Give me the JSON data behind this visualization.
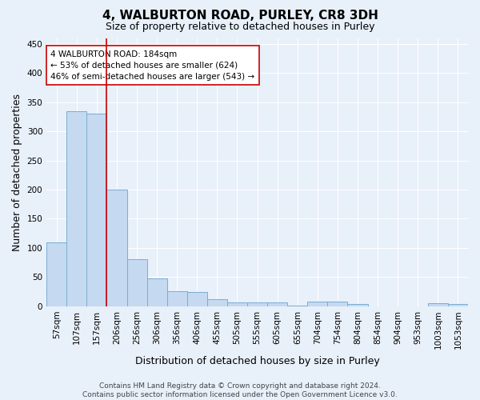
{
  "title": "4, WALBURTON ROAD, PURLEY, CR8 3DH",
  "subtitle": "Size of property relative to detached houses in Purley",
  "xlabel": "Distribution of detached houses by size in Purley",
  "ylabel": "Number of detached properties",
  "bar_labels": [
    "57sqm",
    "107sqm",
    "157sqm",
    "206sqm",
    "256sqm",
    "306sqm",
    "356sqm",
    "406sqm",
    "455sqm",
    "505sqm",
    "555sqm",
    "605sqm",
    "655sqm",
    "704sqm",
    "754sqm",
    "804sqm",
    "854sqm",
    "904sqm",
    "953sqm",
    "1003sqm",
    "1053sqm"
  ],
  "bar_values": [
    109,
    335,
    330,
    200,
    80,
    47,
    25,
    24,
    12,
    7,
    7,
    7,
    1,
    8,
    8,
    4,
    0,
    0,
    0,
    5,
    4
  ],
  "bar_color": "#c5d9f0",
  "bar_edge_color": "#7aadd4",
  "background_color": "#e8f0fa",
  "grid_color": "#ffffff",
  "vline_x": 2.5,
  "vline_color": "#cc0000",
  "annotation_text": "4 WALBURTON ROAD: 184sqm\n← 53% of detached houses are smaller (624)\n46% of semi-detached houses are larger (543) →",
  "annotation_box_color": "#ffffff",
  "annotation_box_edge_color": "#cc0000",
  "footer_line1": "Contains HM Land Registry data © Crown copyright and database right 2024.",
  "footer_line2": "Contains public sector information licensed under the Open Government Licence v3.0.",
  "ylim": [
    0,
    460
  ],
  "yticks": [
    0,
    50,
    100,
    150,
    200,
    250,
    300,
    350,
    400,
    450
  ],
  "title_fontsize": 11,
  "subtitle_fontsize": 9,
  "axis_label_fontsize": 9,
  "tick_fontsize": 7.5,
  "annotation_fontsize": 7.5,
  "footer_fontsize": 6.5
}
